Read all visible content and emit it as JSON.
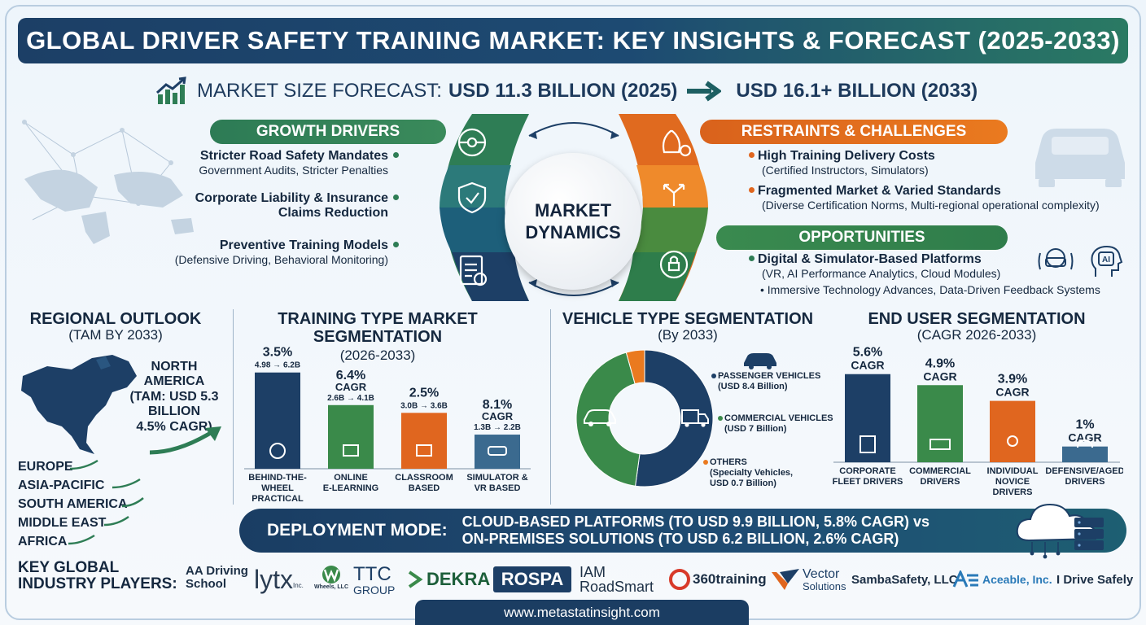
{
  "title": "GLOBAL DRIVER SAFETY TRAINING MARKET: KEY INSIGHTS & FORECAST (2025-2033)",
  "forecast": {
    "label": "MARKET SIZE FORECAST:",
    "value_2025": "USD 11.3 BILLION (2025)",
    "value_2033": "USD 16.1+ BILLION (2033)"
  },
  "dynamics": {
    "center_line1": "MARKET",
    "center_line2": "DYNAMICS",
    "growth_title": "GROWTH DRIVERS",
    "growth_items": [
      {
        "head": "Stricter Road Safety Mandates",
        "sub": "Government Audits, Stricter Penalties"
      },
      {
        "head": "Corporate Liability & Insurance",
        "head2": "Claims Reduction"
      },
      {
        "head": "Preventive Training Models",
        "sub": "(Defensive Driving, Behavioral Monitoring)"
      }
    ],
    "restraints_title": "RESTRAINTS & CHALLENGES",
    "restraints_items": [
      {
        "head": "High Training Delivery Costs",
        "sub": "(Certified Instructors, Simulators)"
      },
      {
        "head": "Fragmented Market & Varied Standards",
        "sub": "(Diverse Certification Norms, Multi-regional operational complexity)"
      }
    ],
    "opportunities_title": "OPPORTUNITIES",
    "opportunities_items": [
      {
        "head": "Digital & Simulator-Based Platforms",
        "sub": "(VR, AI Performance Analytics, Cloud Modules)"
      },
      {
        "bullet": "Immersive Technology Advances, Data-Driven Feedback Systems"
      }
    ],
    "ai_badge": "AI"
  },
  "regional": {
    "title": "REGIONAL OUTLOOK",
    "subtitle": "(TAM BY 2033)",
    "na_line1": "NORTH AMERICA",
    "na_line2": "(TAM: USD 5.3",
    "na_line3": "BILLION",
    "na_line4": "4.5% CAGR)",
    "regions": [
      "EUROPE",
      "ASIA-PACIFIC",
      "SOUTH AMERICA",
      "MIDDLE EAST",
      "AFRICA"
    ]
  },
  "chart_data": [
    {
      "type": "bar",
      "title": "TRAINING TYPE MARKET SEGMENTATION",
      "subtitle": "(2026-2033)",
      "categories": [
        "BEHIND-THE-WHEEL PRACTICAL",
        "ONLINE E-LEARNING",
        "CLASSROOM BASED",
        "SIMULATOR & VR BASED"
      ],
      "category_lines": [
        [
          "BEHIND-THE-",
          "WHEEL",
          "PRACTICAL"
        ],
        [
          "ONLINE",
          "E-LEARNING"
        ],
        [
          "CLASSROOM",
          "BASED"
        ],
        [
          "SIMULATOR &",
          "VR BASED"
        ]
      ],
      "cagr_labels": [
        "3.5%",
        "6.4%",
        "2.5%",
        "8.1%"
      ],
      "cagr_word": [
        "",
        "CAGR",
        "",
        "CAGR"
      ],
      "ranges": [
        "4.98 → 6.2B",
        "2.6B → 4.1B",
        "3.0B → 3.6B",
        "1.3B → 2.2B"
      ],
      "start_values": [
        4.98,
        2.6,
        3.0,
        1.3
      ],
      "values": [
        6.2,
        4.1,
        3.6,
        2.2
      ],
      "colors": [
        "#1d3f66",
        "#3a8a4a",
        "#e0661f",
        "#3b6a8f"
      ],
      "ylabel": "",
      "ylim": [
        0,
        6.5
      ]
    },
    {
      "type": "pie",
      "title": "VEHICLE TYPE SEGMENTATION",
      "subtitle": "(By 2033)",
      "labels": [
        "PASSENGER VEHICLES",
        "COMMERCIAL VEHICLES",
        "OTHERS"
      ],
      "sub_labels": [
        "(USD 8.4 Billion)",
        "(USD 7 Billion)",
        "(Specialty Vehicles,"
      ],
      "sub_labels2": [
        "",
        "",
        "USD 0.7 Billion)"
      ],
      "values": [
        8.4,
        7.0,
        0.7
      ],
      "colors": [
        "#1d3f66",
        "#3a8a4a",
        "#ea7a1f"
      ]
    },
    {
      "type": "bar",
      "title": "END USER SEGMENTATION",
      "subtitle": "(CAGR 2026-2033)",
      "categories": [
        "CORPORATE FLEET DRIVERS",
        "COMMERCIAL DRIVERS",
        "INDIVIDUAL NOVICE DRIVERS",
        "DEFENSIVE/AGED DRIVERS"
      ],
      "category_lines": [
        [
          "CORPORATE",
          "FLEET DRIVERS"
        ],
        [
          "COMMERCIAL",
          "DRIVERS"
        ],
        [
          "INDIVIDUAL",
          "NOVICE",
          "DRIVERS"
        ],
        [
          "DEFENSIVE/AGED",
          "DRIVERS"
        ]
      ],
      "labels": [
        "5.6%",
        "4.9%",
        "3.9%",
        "1%"
      ],
      "cagr_word": "CAGR",
      "values": [
        5.6,
        4.9,
        3.9,
        1.0
      ],
      "colors": [
        "#1d3f66",
        "#3a8a4a",
        "#e0661f",
        "#3b6a8f"
      ],
      "ylim": [
        0,
        6
      ]
    }
  ],
  "deployment": {
    "label": "DEPLOYMENT MODE:",
    "line1": "CLOUD-BASED PLATFORMS (TO USD 9.9 BILLION, 5.8% CAGR) vs",
    "line2": "ON-PREMISES SOLUTIONS (TO USD 6.2 BILLION, 2.6% CAGR)"
  },
  "players": {
    "label_line1": "KEY GLOBAL",
    "label_line2": "INDUSTRY PLAYERS:",
    "aa_line1": "AA Driving",
    "aa_line2": "School",
    "lytx": "lytx",
    "lytx_inc": "Inc.",
    "wheels_sub": "Wheels, LLC",
    "ttc_line1": "TTC",
    "ttc_line2": "GROUP",
    "dekra": "DEKRA",
    "rospa": "ROSPA",
    "iam_line1": "IAM",
    "iam_line2": "RoadSmart",
    "training360": "360training",
    "vector_line1": "Vector",
    "vector_line2": "Solutions",
    "samba": "SambaSafety, LLC",
    "aceable": "Aceable, Inc.",
    "idrive": "I Drive Safely"
  },
  "url": "www.metastatinsight.com"
}
